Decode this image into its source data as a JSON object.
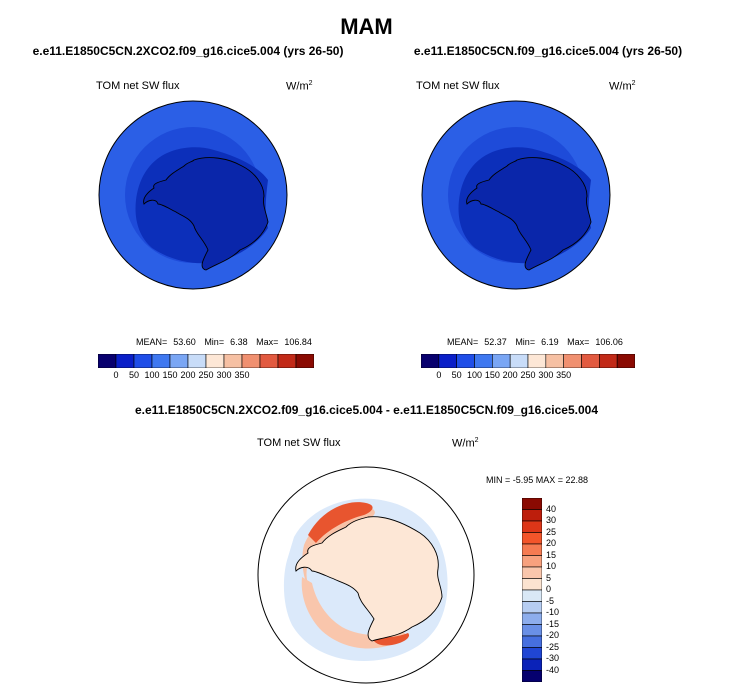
{
  "season_title": "MAM",
  "panels": [
    {
      "title": "e.e11.E1850C5CN.2XCO2.f09_g16.cice5.004 (yrs 26-50)",
      "variable": "TOM net SW flux",
      "units": "W/m",
      "units_sup": "2",
      "stats": {
        "mean_label": "MEAN=",
        "mean": "53.60",
        "min_label": "Min=",
        "min": "6.38",
        "max_label": "Max=",
        "max": "106.84"
      }
    },
    {
      "title": "e.e11.E1850C5CN.f09_g16.cice5.004 (yrs 26-50)",
      "variable": "TOM net SW flux",
      "units": "W/m",
      "units_sup": "2",
      "stats": {
        "mean_label": "MEAN=",
        "mean": "52.37",
        "min_label": "Min=",
        "min": "6.19",
        "max_label": "Max=",
        "max": "106.06"
      }
    }
  ],
  "difference_panel": {
    "title": "e.e11.E1850C5CN.2XCO2.f09_g16.cice5.004 - e.e11.E1850C5CN.f09_g16.cice5.004",
    "variable": "TOM net SW flux",
    "units": "W/m",
    "units_sup": "2",
    "minmax": "MIN =  -5.95 MAX =  22.88"
  },
  "colorbar_top": {
    "colors": [
      "#08006e",
      "#0a1fc8",
      "#1f4ee8",
      "#3f78f0",
      "#7aa6f4",
      "#c8dcf8",
      "#fde7d6",
      "#f6c0a3",
      "#f09070",
      "#e25a40",
      "#c22a18",
      "#8a0a02"
    ],
    "labels": [
      "0",
      "50",
      "100",
      "150",
      "200",
      "250",
      "300",
      "350"
    ]
  },
  "colorbar_diff": {
    "colors_top_to_bottom": [
      "#8a0a02",
      "#bd1e0c",
      "#dd3618",
      "#f3552a",
      "#f57b52",
      "#f7a17e",
      "#f9c6ac",
      "#fbe3d0",
      "#d9e8f6",
      "#b6cdf2",
      "#8dadec",
      "#6a90e6",
      "#466fdf",
      "#2046d4",
      "#0a22b8",
      "#05006e"
    ],
    "labels": [
      "40",
      "30",
      "25",
      "20",
      "15",
      "10",
      "5",
      "0",
      "-5",
      "-10",
      "-15",
      "-20",
      "-25",
      "-30",
      "-40"
    ]
  }
}
